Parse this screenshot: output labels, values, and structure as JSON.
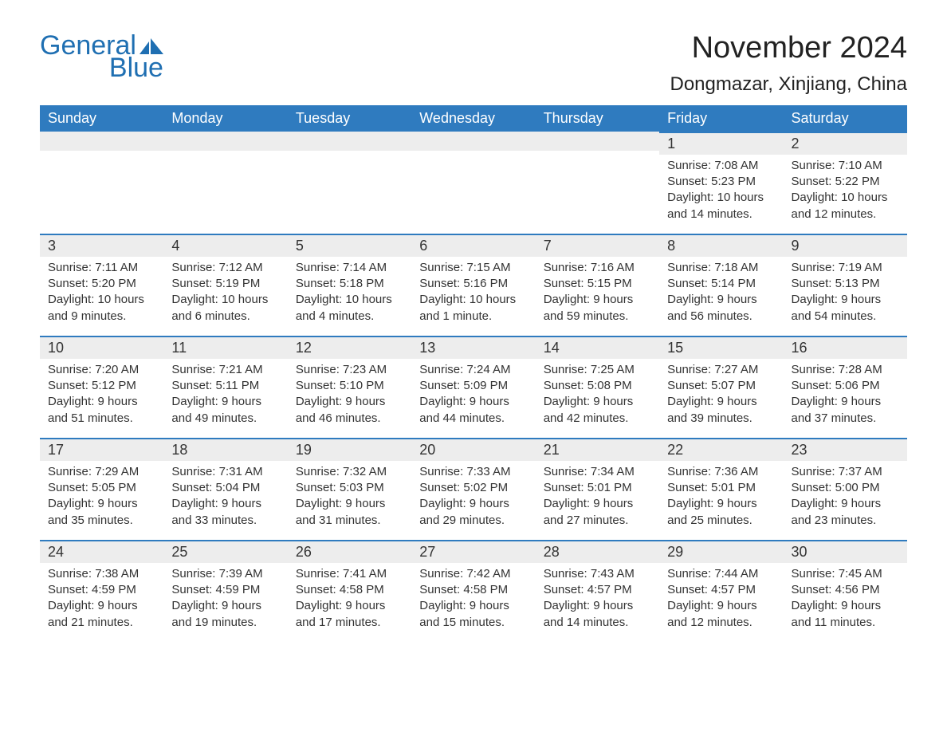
{
  "logo": {
    "text1": "General",
    "text2": "Blue",
    "brand_color": "#1f6fb2"
  },
  "title": {
    "month": "November 2024",
    "location": "Dongmazar, Xinjiang, China"
  },
  "calendar": {
    "type": "table",
    "header_bg": "#2f7bbf",
    "header_text_color": "#ffffff",
    "daynum_bg": "#ededed",
    "daynum_border": "#2f7bbf",
    "text_color": "#333333",
    "fontsize_header": 18,
    "fontsize_daynum": 18,
    "fontsize_body": 15,
    "columns": [
      "Sunday",
      "Monday",
      "Tuesday",
      "Wednesday",
      "Thursday",
      "Friday",
      "Saturday"
    ],
    "first_weekday_index": 5,
    "days": [
      {
        "n": 1,
        "sunrise": "7:08 AM",
        "sunset": "5:23 PM",
        "daylight": "10 hours and 14 minutes."
      },
      {
        "n": 2,
        "sunrise": "7:10 AM",
        "sunset": "5:22 PM",
        "daylight": "10 hours and 12 minutes."
      },
      {
        "n": 3,
        "sunrise": "7:11 AM",
        "sunset": "5:20 PM",
        "daylight": "10 hours and 9 minutes."
      },
      {
        "n": 4,
        "sunrise": "7:12 AM",
        "sunset": "5:19 PM",
        "daylight": "10 hours and 6 minutes."
      },
      {
        "n": 5,
        "sunrise": "7:14 AM",
        "sunset": "5:18 PM",
        "daylight": "10 hours and 4 minutes."
      },
      {
        "n": 6,
        "sunrise": "7:15 AM",
        "sunset": "5:16 PM",
        "daylight": "10 hours and 1 minute."
      },
      {
        "n": 7,
        "sunrise": "7:16 AM",
        "sunset": "5:15 PM",
        "daylight": "9 hours and 59 minutes."
      },
      {
        "n": 8,
        "sunrise": "7:18 AM",
        "sunset": "5:14 PM",
        "daylight": "9 hours and 56 minutes."
      },
      {
        "n": 9,
        "sunrise": "7:19 AM",
        "sunset": "5:13 PM",
        "daylight": "9 hours and 54 minutes."
      },
      {
        "n": 10,
        "sunrise": "7:20 AM",
        "sunset": "5:12 PM",
        "daylight": "9 hours and 51 minutes."
      },
      {
        "n": 11,
        "sunrise": "7:21 AM",
        "sunset": "5:11 PM",
        "daylight": "9 hours and 49 minutes."
      },
      {
        "n": 12,
        "sunrise": "7:23 AM",
        "sunset": "5:10 PM",
        "daylight": "9 hours and 46 minutes."
      },
      {
        "n": 13,
        "sunrise": "7:24 AM",
        "sunset": "5:09 PM",
        "daylight": "9 hours and 44 minutes."
      },
      {
        "n": 14,
        "sunrise": "7:25 AM",
        "sunset": "5:08 PM",
        "daylight": "9 hours and 42 minutes."
      },
      {
        "n": 15,
        "sunrise": "7:27 AM",
        "sunset": "5:07 PM",
        "daylight": "9 hours and 39 minutes."
      },
      {
        "n": 16,
        "sunrise": "7:28 AM",
        "sunset": "5:06 PM",
        "daylight": "9 hours and 37 minutes."
      },
      {
        "n": 17,
        "sunrise": "7:29 AM",
        "sunset": "5:05 PM",
        "daylight": "9 hours and 35 minutes."
      },
      {
        "n": 18,
        "sunrise": "7:31 AM",
        "sunset": "5:04 PM",
        "daylight": "9 hours and 33 minutes."
      },
      {
        "n": 19,
        "sunrise": "7:32 AM",
        "sunset": "5:03 PM",
        "daylight": "9 hours and 31 minutes."
      },
      {
        "n": 20,
        "sunrise": "7:33 AM",
        "sunset": "5:02 PM",
        "daylight": "9 hours and 29 minutes."
      },
      {
        "n": 21,
        "sunrise": "7:34 AM",
        "sunset": "5:01 PM",
        "daylight": "9 hours and 27 minutes."
      },
      {
        "n": 22,
        "sunrise": "7:36 AM",
        "sunset": "5:01 PM",
        "daylight": "9 hours and 25 minutes."
      },
      {
        "n": 23,
        "sunrise": "7:37 AM",
        "sunset": "5:00 PM",
        "daylight": "9 hours and 23 minutes."
      },
      {
        "n": 24,
        "sunrise": "7:38 AM",
        "sunset": "4:59 PM",
        "daylight": "9 hours and 21 minutes."
      },
      {
        "n": 25,
        "sunrise": "7:39 AM",
        "sunset": "4:59 PM",
        "daylight": "9 hours and 19 minutes."
      },
      {
        "n": 26,
        "sunrise": "7:41 AM",
        "sunset": "4:58 PM",
        "daylight": "9 hours and 17 minutes."
      },
      {
        "n": 27,
        "sunrise": "7:42 AM",
        "sunset": "4:58 PM",
        "daylight": "9 hours and 15 minutes."
      },
      {
        "n": 28,
        "sunrise": "7:43 AM",
        "sunset": "4:57 PM",
        "daylight": "9 hours and 14 minutes."
      },
      {
        "n": 29,
        "sunrise": "7:44 AM",
        "sunset": "4:57 PM",
        "daylight": "9 hours and 12 minutes."
      },
      {
        "n": 30,
        "sunrise": "7:45 AM",
        "sunset": "4:56 PM",
        "daylight": "9 hours and 11 minutes."
      }
    ],
    "labels": {
      "sunrise": "Sunrise:",
      "sunset": "Sunset:",
      "daylight": "Daylight:"
    }
  }
}
